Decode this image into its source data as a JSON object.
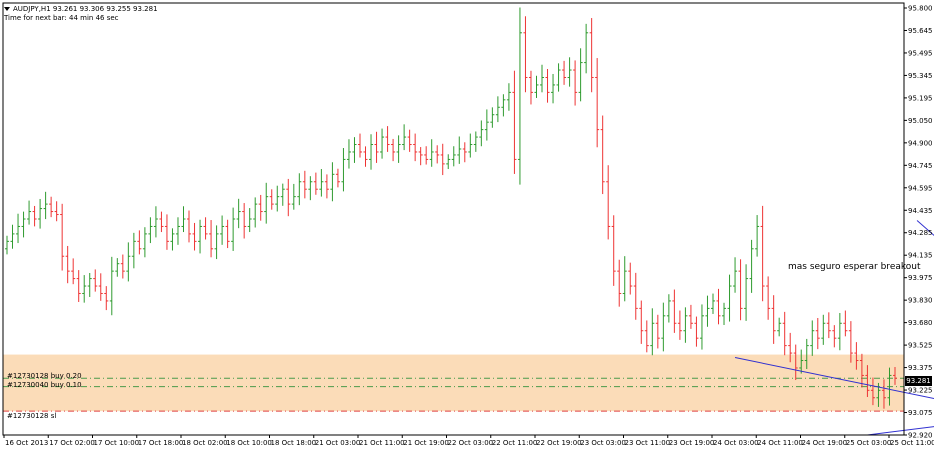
{
  "header": {
    "symbol_line": "AUDJPY,H1  93.261 93.306 93.255 93.281",
    "timer_line": "Time for next bar: 44 min 46 sec"
  },
  "annotation": "mas seguro esperar breakout",
  "current_price_label": "93.281",
  "orders": [
    {
      "label": "#12730128 buy 0.20",
      "price": 93.281,
      "style": "dash-dot",
      "color": "#4a9a4a"
    },
    {
      "label": "#12730040 buy 0.10",
      "price": 93.225,
      "style": "dash-dot",
      "color": "#4a9a4a"
    },
    {
      "label": "#12730128 sl",
      "price": 93.06,
      "style": "dash-dot",
      "color": "#e04040"
    }
  ],
  "colors": {
    "bull": "#2e9a2e",
    "bear": "#ee3333",
    "zone": "#fbdcb8",
    "trendline": "#3030d0",
    "grid_frame": "#000000"
  },
  "chart_data": {
    "type": "ohlc",
    "title": "AUDJPY,H1",
    "ylim": [
      92.9,
      95.8
    ],
    "y_ticks": [
      "95.800",
      "95.645",
      "95.495",
      "95.345",
      "95.195",
      "95.050",
      "94.900",
      "94.745",
      "94.595",
      "94.435",
      "94.285",
      "94.135",
      "93.975",
      "93.830",
      "93.680",
      "93.525",
      "93.375",
      "93.225",
      "93.075",
      "92.920"
    ],
    "x_ticks": [
      "16 Oct 2013",
      "17 Oct 02:00",
      "17 Oct 10:00",
      "17 Oct 18:00",
      "18 Oct 02:00",
      "18 Oct 10:00",
      "18 Oct 18:00",
      "21 Oct 03:00",
      "21 Oct 11:00",
      "21 Oct 19:00",
      "22 Oct 03:00",
      "22 Oct 11:00",
      "22 Oct 19:00",
      "23 Oct 03:00",
      "23 Oct 11:00",
      "23 Oct 19:00",
      "24 Oct 03:00",
      "24 Oct 11:00",
      "24 Oct 19:00",
      "25 Oct 03:00",
      "25 Oct 11:00"
    ],
    "zone": {
      "from": 93.06,
      "to": 93.44
    },
    "trendlines": [
      {
        "from": {
          "bar": 165,
          "price": 94.34
        },
        "to": {
          "bar": 197,
          "price": 93.3
        }
      },
      {
        "from": {
          "bar": 132,
          "price": 93.42
        },
        "to": {
          "bar": 195,
          "price": 92.94
        }
      },
      {
        "from": {
          "bar": 156,
          "price": 92.9
        },
        "to": {
          "bar": 203,
          "price": 93.12
        }
      }
    ],
    "closes": [
      94.2,
      94.25,
      94.3,
      94.35,
      94.4,
      94.35,
      94.42,
      94.45,
      94.4,
      94.38,
      94.1,
      94.0,
      93.95,
      93.85,
      93.9,
      93.95,
      93.9,
      93.85,
      93.8,
      94.0,
      94.05,
      94.0,
      94.1,
      94.2,
      94.15,
      94.25,
      94.3,
      94.35,
      94.3,
      94.2,
      94.25,
      94.3,
      94.35,
      94.25,
      94.2,
      94.3,
      94.25,
      94.15,
      94.25,
      94.3,
      94.2,
      94.35,
      94.4,
      94.3,
      94.35,
      94.45,
      94.4,
      94.5,
      94.45,
      94.5,
      94.55,
      94.45,
      94.5,
      94.6,
      94.55,
      94.6,
      94.55,
      94.6,
      94.55,
      94.65,
      94.6,
      94.75,
      94.8,
      94.85,
      94.8,
      94.75,
      94.85,
      94.8,
      94.9,
      94.85,
      94.8,
      94.85,
      94.9,
      94.85,
      94.8,
      94.78,
      94.75,
      94.8,
      94.78,
      94.72,
      94.75,
      94.78,
      94.82,
      94.8,
      94.85,
      94.9,
      94.95,
      95.0,
      95.05,
      95.1,
      95.15,
      95.2,
      94.75,
      95.6,
      95.3,
      95.2,
      95.25,
      95.3,
      95.2,
      95.25,
      95.35,
      95.3,
      95.35,
      95.2,
      95.4,
      95.6,
      95.3,
      94.95,
      94.6,
      94.3,
      94.0,
      93.85,
      94.0,
      93.9,
      93.75,
      93.6,
      93.5,
      93.65,
      93.55,
      93.7,
      93.8,
      93.65,
      93.6,
      93.7,
      93.65,
      93.55,
      93.7,
      93.75,
      93.8,
      93.7,
      93.75,
      93.9,
      94.0,
      93.75,
      93.95,
      94.15,
      94.3,
      93.9,
      93.75,
      93.6,
      93.65,
      93.5,
      93.45,
      93.35,
      93.4,
      93.5,
      93.6,
      93.55,
      93.65,
      93.6,
      93.55,
      93.65,
      93.6,
      93.45,
      93.4,
      93.3,
      93.2,
      93.15,
      93.2,
      93.15,
      93.3,
      93.281
    ]
  }
}
